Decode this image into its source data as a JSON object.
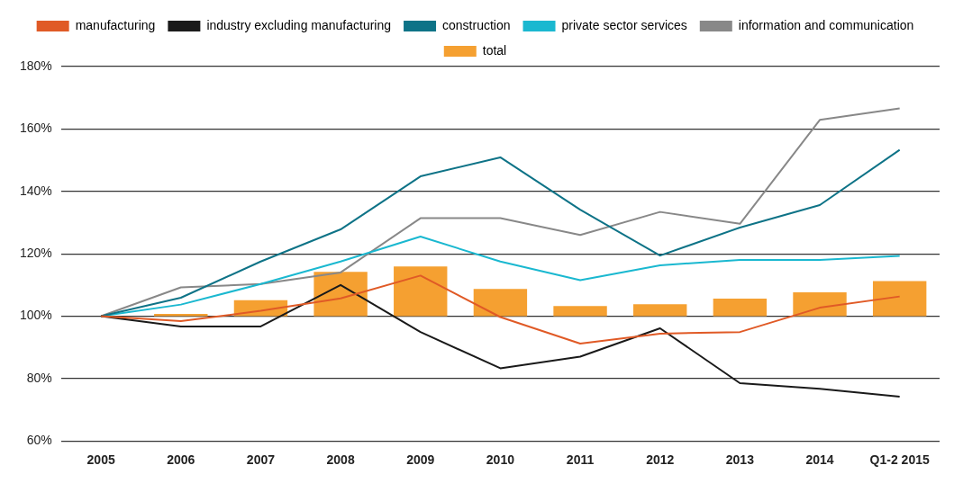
{
  "chart_data": {
    "type": "line",
    "categories": [
      "2005",
      "2006",
      "2007",
      "2008",
      "2009",
      "2010",
      "2011",
      "2012",
      "2013",
      "2014",
      "Q1-2 2015"
    ],
    "series": [
      {
        "name": "manufacturing",
        "color": "#e05a26",
        "values": [
          100,
          98.4,
          101.7,
          105.7,
          113,
          99.7,
          91.2,
          94.4,
          94.9,
          102.7,
          106.3
        ]
      },
      {
        "name": "industry excluding manufacturing",
        "color": "#1a1a1a",
        "values": [
          100,
          96.7,
          96.7,
          110,
          94.9,
          83.3,
          87,
          96.1,
          78.5,
          76.7,
          74.2
        ]
      },
      {
        "name": "construction",
        "color": "#0e7387",
        "values": [
          100,
          105.9,
          117.5,
          127.8,
          144.8,
          150.9,
          134.1,
          119.4,
          128.4,
          135.6,
          153.3
        ]
      },
      {
        "name": "private sector services",
        "color": "#1ab8d0",
        "values": [
          100,
          103.7,
          110.3,
          117.5,
          125.5,
          117.5,
          111.5,
          116.3,
          118,
          118,
          119.3
        ]
      },
      {
        "name": "information and communication",
        "color": "#888888",
        "values": [
          100,
          109.2,
          110.3,
          114,
          131.4,
          131.4,
          126,
          133.4,
          129.6,
          162.9,
          166.6
        ]
      },
      {
        "name": "total",
        "type": "bar",
        "color": "#f5a031",
        "base": [
          null,
          100,
          100,
          100,
          100,
          100,
          100,
          100,
          100,
          100,
          100
        ],
        "values": [
          null,
          0.7,
          5.1,
          14.2,
          15.9,
          8.7,
          3.2,
          3.8,
          5.6,
          7.6,
          11.2
        ]
      }
    ],
    "ylim": [
      60,
      180
    ],
    "yticks": [
      {
        "value": 60,
        "label": "60%"
      },
      {
        "value": 80,
        "label": "80%"
      },
      {
        "value": 100,
        "label": "100%"
      },
      {
        "value": 120,
        "label": "120%"
      },
      {
        "value": 140,
        "label": "140%"
      },
      {
        "value": 160,
        "label": "160%"
      },
      {
        "value": 180,
        "label": "180%"
      }
    ],
    "grid": "y",
    "legend": "top",
    "marker": "none"
  }
}
